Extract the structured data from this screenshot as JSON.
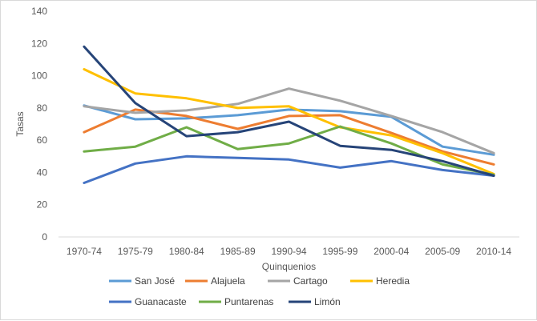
{
  "chart_data": {
    "type": "line",
    "xlabel": "Quinquenios",
    "ylabel": "Tasas",
    "ylim": [
      0,
      140
    ],
    "yticks": [
      0,
      20,
      40,
      60,
      80,
      100,
      120,
      140
    ],
    "grid": false,
    "legend_position": "bottom",
    "categories": [
      "1970-74",
      "1975-79",
      "1980-84",
      "1985-89",
      "1990-94",
      "1995-99",
      "2000-04",
      "2005-09",
      "2010-14"
    ],
    "series": [
      {
        "name": "San José",
        "color": "#5B9BD5",
        "values": [
          81.5,
          73,
          73.5,
          75.5,
          79,
          78,
          74.5,
          56,
          51
        ]
      },
      {
        "name": "Alajuela",
        "color": "#ED7D31",
        "values": [
          65,
          79,
          75,
          67,
          75,
          75.5,
          64.5,
          53,
          45
        ]
      },
      {
        "name": "Cartago",
        "color": "#A5A5A5",
        "values": [
          81,
          77,
          78.5,
          82.5,
          92,
          84.5,
          75,
          65,
          52
        ]
      },
      {
        "name": "Heredia",
        "color": "#FFC000",
        "values": [
          104,
          89,
          86,
          80,
          81,
          68,
          63,
          52,
          39
        ]
      },
      {
        "name": "Guanacaste",
        "color": "#4472C4",
        "values": [
          33.5,
          45.5,
          50,
          49,
          48,
          43,
          47,
          41.5,
          38
        ]
      },
      {
        "name": "Puntarenas",
        "color": "#70AD47",
        "values": [
          53,
          56,
          68,
          54.5,
          58,
          68.5,
          58,
          45,
          38.5
        ]
      },
      {
        "name": "Limón",
        "color": "#264478",
        "values": [
          118,
          83,
          62.5,
          65,
          71.5,
          56.5,
          54,
          47,
          38
        ]
      }
    ]
  }
}
